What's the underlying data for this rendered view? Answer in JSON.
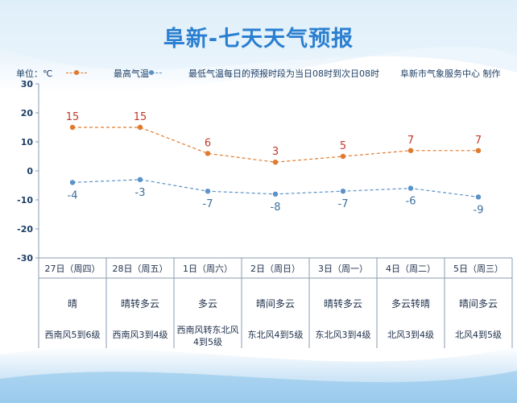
{
  "title": "阜新-七天天气预报",
  "legend": {
    "unit": "单位：℃",
    "high_label": "最高气温",
    "low_label": "最低气温",
    "note": "每日的预报时段为当日08时到次日08时",
    "credit": "阜新市气象服务中心 制作"
  },
  "colors": {
    "high": "#e07b2e",
    "low": "#5b92c8",
    "title": "#2b7fd0"
  },
  "chart_data": {
    "type": "line",
    "categories": [
      "27日（周四）",
      "28日（周五）",
      "1日（周六）",
      "2日（周日）",
      "3日（周一）",
      "4日（周二）",
      "5日（周三）"
    ],
    "series": [
      {
        "name": "最高气温",
        "values": [
          15,
          15,
          6,
          3,
          5,
          7,
          7
        ]
      },
      {
        "name": "最低气温",
        "values": [
          -4,
          -3,
          -7,
          -8,
          -7,
          -6,
          -9
        ]
      }
    ],
    "yticks": [
      "30",
      "20",
      "10",
      "0",
      "-10",
      "-20",
      "-30"
    ],
    "ylim": [
      -30,
      30
    ],
    "grid": false,
    "legend_position": "top"
  },
  "days": [
    {
      "weather": "晴",
      "wind": "西南风5到6级"
    },
    {
      "weather": "晴转多云",
      "wind": "西南风3到4级"
    },
    {
      "weather": "多云",
      "wind": "西南风转东北风4到5级"
    },
    {
      "weather": "晴间多云",
      "wind": "东北风4到5级"
    },
    {
      "weather": "晴转多云",
      "wind": "东北风3到4级"
    },
    {
      "weather": "多云转晴",
      "wind": "北风3到4级"
    },
    {
      "weather": "晴间多云",
      "wind": "北风4到5级"
    }
  ]
}
